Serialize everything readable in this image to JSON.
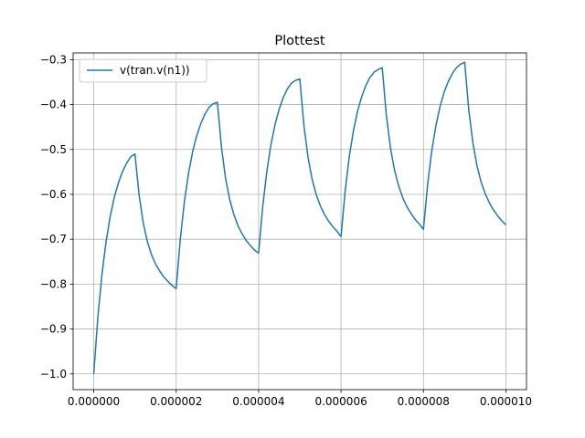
{
  "chart_data": {
    "type": "line",
    "title": "Plottest",
    "xlabel": "",
    "ylabel": "",
    "xlim": [
      -5e-07,
      1.05e-05
    ],
    "ylim": [
      -1.035,
      -0.285
    ],
    "x_ticks": [
      "0.000000",
      "0.000002",
      "0.000004",
      "0.000006",
      "0.000008",
      "0.000010"
    ],
    "y_ticks": [
      "−1.0",
      "−0.9",
      "−0.8",
      "−0.7",
      "−0.6",
      "−0.5",
      "−0.4",
      "−0.3"
    ],
    "grid": true,
    "legend_position": "upper-left",
    "series": [
      {
        "name": "v(tran.v(n1))",
        "color": "#1f77b4",
        "x": [
          0,
          1e-07,
          2e-07,
          3e-07,
          4e-07,
          5e-07,
          6e-07,
          7e-07,
          8e-07,
          9e-07,
          1e-06,
          1.1e-06,
          1.2e-06,
          1.3e-06,
          1.4e-06,
          1.5e-06,
          1.6e-06,
          1.7e-06,
          1.8e-06,
          1.9e-06,
          2e-06,
          2.1e-06,
          2.2e-06,
          2.3e-06,
          2.4e-06,
          2.5e-06,
          2.6e-06,
          2.7e-06,
          2.8e-06,
          2.9e-06,
          3e-06,
          3.1e-06,
          3.2e-06,
          3.3e-06,
          3.4e-06,
          3.5e-06,
          3.6e-06,
          3.7e-06,
          3.8e-06,
          3.9e-06,
          4e-06,
          4.1e-06,
          4.2e-06,
          4.3e-06,
          4.4e-06,
          4.5e-06,
          4.6e-06,
          4.7e-06,
          4.8e-06,
          4.9e-06,
          5e-06,
          5.1e-06,
          5.2e-06,
          5.3e-06,
          5.4e-06,
          5.5e-06,
          5.6e-06,
          5.7e-06,
          5.8e-06,
          5.9e-06,
          6e-06,
          6.1e-06,
          6.2e-06,
          6.3e-06,
          6.4e-06,
          6.5e-06,
          6.6e-06,
          6.7e-06,
          6.8e-06,
          6.9e-06,
          7e-06,
          7.1e-06,
          7.2e-06,
          7.3e-06,
          7.4e-06,
          7.5e-06,
          7.6e-06,
          7.7e-06,
          7.8e-06,
          7.9e-06,
          8e-06,
          8.1e-06,
          8.2e-06,
          8.3e-06,
          8.4e-06,
          8.5e-06,
          8.6e-06,
          8.7e-06,
          8.8e-06,
          8.9e-06,
          9e-06,
          9.1e-06,
          9.2e-06,
          9.3e-06,
          9.4e-06,
          9.5e-06,
          9.6e-06,
          9.7e-06,
          9.8e-06,
          9.9e-06,
          1e-05
        ],
        "values": [
          -1.0,
          -0.874,
          -0.778,
          -0.705,
          -0.649,
          -0.606,
          -0.574,
          -0.549,
          -0.53,
          -0.516,
          -0.51,
          -0.601,
          -0.663,
          -0.705,
          -0.734,
          -0.755,
          -0.771,
          -0.784,
          -0.794,
          -0.803,
          -0.81,
          -0.7,
          -0.616,
          -0.553,
          -0.505,
          -0.469,
          -0.442,
          -0.421,
          -0.406,
          -0.398,
          -0.395,
          -0.496,
          -0.565,
          -0.612,
          -0.645,
          -0.67,
          -0.688,
          -0.703,
          -0.714,
          -0.724,
          -0.731,
          -0.627,
          -0.549,
          -0.489,
          -0.444,
          -0.41,
          -0.384,
          -0.365,
          -0.352,
          -0.346,
          -0.343,
          -0.447,
          -0.518,
          -0.567,
          -0.601,
          -0.626,
          -0.645,
          -0.66,
          -0.672,
          -0.682,
          -0.694,
          -0.593,
          -0.516,
          -0.459,
          -0.415,
          -0.383,
          -0.358,
          -0.34,
          -0.328,
          -0.322,
          -0.318,
          -0.424,
          -0.497,
          -0.547,
          -0.582,
          -0.608,
          -0.628,
          -0.643,
          -0.656,
          -0.666,
          -0.678,
          -0.579,
          -0.504,
          -0.448,
          -0.405,
          -0.373,
          -0.349,
          -0.331,
          -0.318,
          -0.31,
          -0.306,
          -0.412,
          -0.486,
          -0.537,
          -0.573,
          -0.599,
          -0.619,
          -0.635,
          -0.648,
          -0.659,
          -0.668
        ]
      }
    ]
  }
}
